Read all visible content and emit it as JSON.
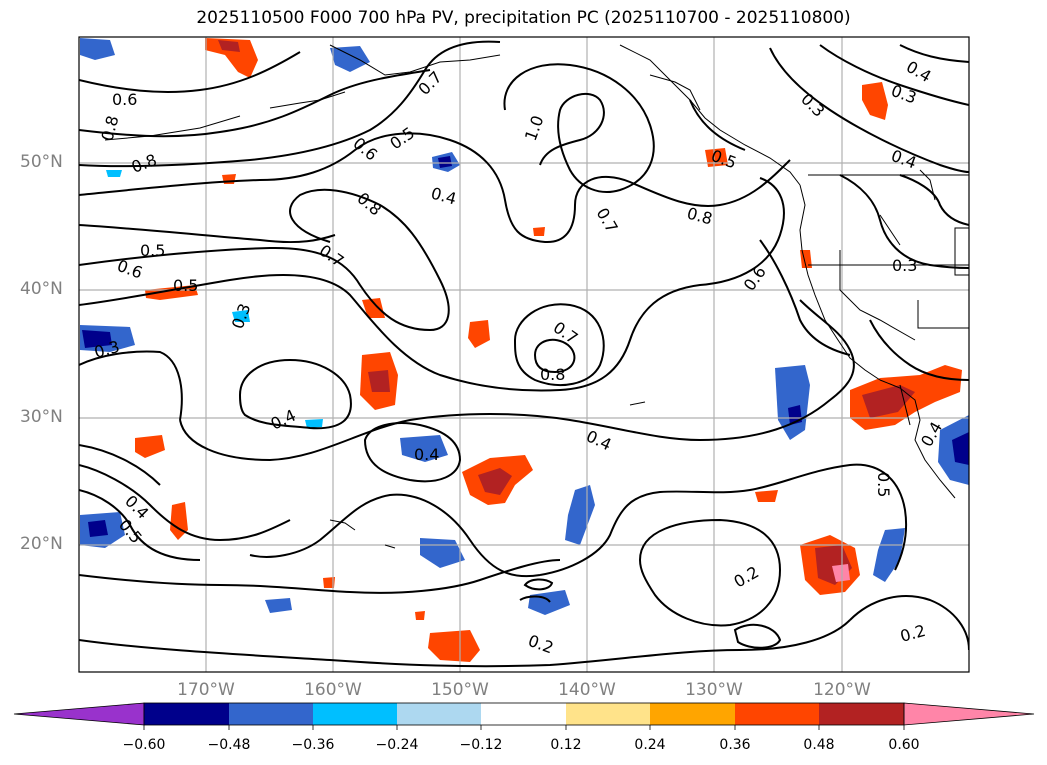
{
  "title": "2025110500 F000 700 hPa PV, precipitation PC (2025110700 - 2025110800)",
  "lat_labels": [
    "50°N",
    "40°N",
    "30°N",
    "20°N"
  ],
  "lon_labels": [
    "170°W",
    "160°W",
    "150°W",
    "140°W",
    "130°W",
    "120°W"
  ],
  "colorbar": {
    "tick_labels": [
      "−0.60",
      "−0.48",
      "−0.36",
      "−0.24",
      "−0.12",
      "0.12",
      "0.24",
      "0.36",
      "0.48",
      "0.60"
    ],
    "colors": [
      "#9932cc",
      "#00008b",
      "#3366cc",
      "#00bfff",
      "#add8f0",
      "#ffffff",
      "#ffe38a",
      "#ffa500",
      "#ff4500",
      "#b22222",
      "#ff85a8"
    ]
  },
  "contour_labels": [
    "0.6",
    "0.8",
    "0.8",
    "0.5",
    "0.6",
    "0.5",
    "0.3",
    "0.3",
    "0.7",
    "0.6",
    "0.5",
    "0.4",
    "0.8",
    "0.7",
    "1.0",
    "0.7",
    "0.8",
    "0.5",
    "0.6",
    "0.7",
    "0.8",
    "0.4",
    "0.4",
    "0.4",
    "0.4",
    "0.5",
    "0.3",
    "0.4",
    "0.3",
    "0.4",
    "0.3",
    "0.5",
    "0.2",
    "0.2",
    "0.2",
    "0.4"
  ]
}
